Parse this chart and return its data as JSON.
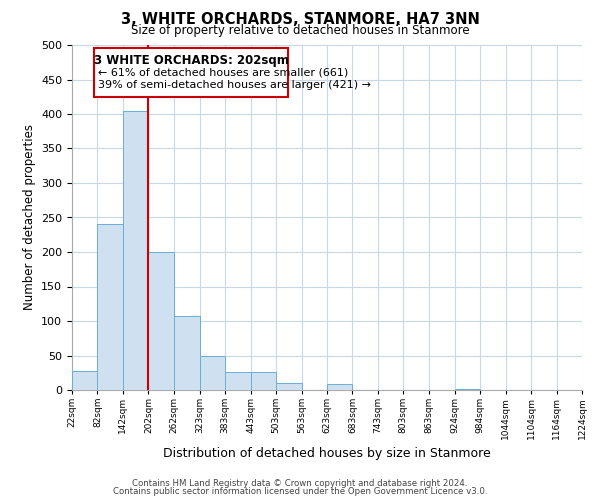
{
  "title": "3, WHITE ORCHARDS, STANMORE, HA7 3NN",
  "subtitle": "Size of property relative to detached houses in Stanmore",
  "xlabel": "Distribution of detached houses by size in Stanmore",
  "ylabel": "Number of detached properties",
  "bar_edges": [
    22,
    82,
    142,
    202,
    262,
    323,
    383,
    443,
    503,
    563,
    623,
    683,
    743,
    803,
    863,
    924,
    984,
    1044,
    1104,
    1164,
    1224
  ],
  "bar_heights": [
    27,
    240,
    405,
    200,
    107,
    49,
    26,
    26,
    10,
    0,
    8,
    0,
    0,
    0,
    0,
    2,
    0,
    0,
    0,
    0,
    3
  ],
  "bar_color": "#cfe0f0",
  "bar_edge_color": "#6baed6",
  "property_line_x": 202,
  "property_line_color": "#cc0000",
  "ylim": [
    0,
    500
  ],
  "yticks": [
    0,
    50,
    100,
    150,
    200,
    250,
    300,
    350,
    400,
    450,
    500
  ],
  "annotation_title": "3 WHITE ORCHARDS: 202sqm",
  "annotation_line1": "← 61% of detached houses are smaller (661)",
  "annotation_line2": "39% of semi-detached houses are larger (421) →",
  "annotation_box_color": "#ffffff",
  "annotation_box_edge": "#cc0000",
  "footer_line1": "Contains HM Land Registry data © Crown copyright and database right 2024.",
  "footer_line2": "Contains public sector information licensed under the Open Government Licence v3.0.",
  "tick_labels": [
    "22sqm",
    "82sqm",
    "142sqm",
    "202sqm",
    "262sqm",
    "323sqm",
    "383sqm",
    "443sqm",
    "503sqm",
    "563sqm",
    "623sqm",
    "683sqm",
    "743sqm",
    "803sqm",
    "863sqm",
    "924sqm",
    "984sqm",
    "1044sqm",
    "1104sqm",
    "1164sqm",
    "1224sqm"
  ],
  "background_color": "#ffffff",
  "grid_color": "#c8d8e8"
}
